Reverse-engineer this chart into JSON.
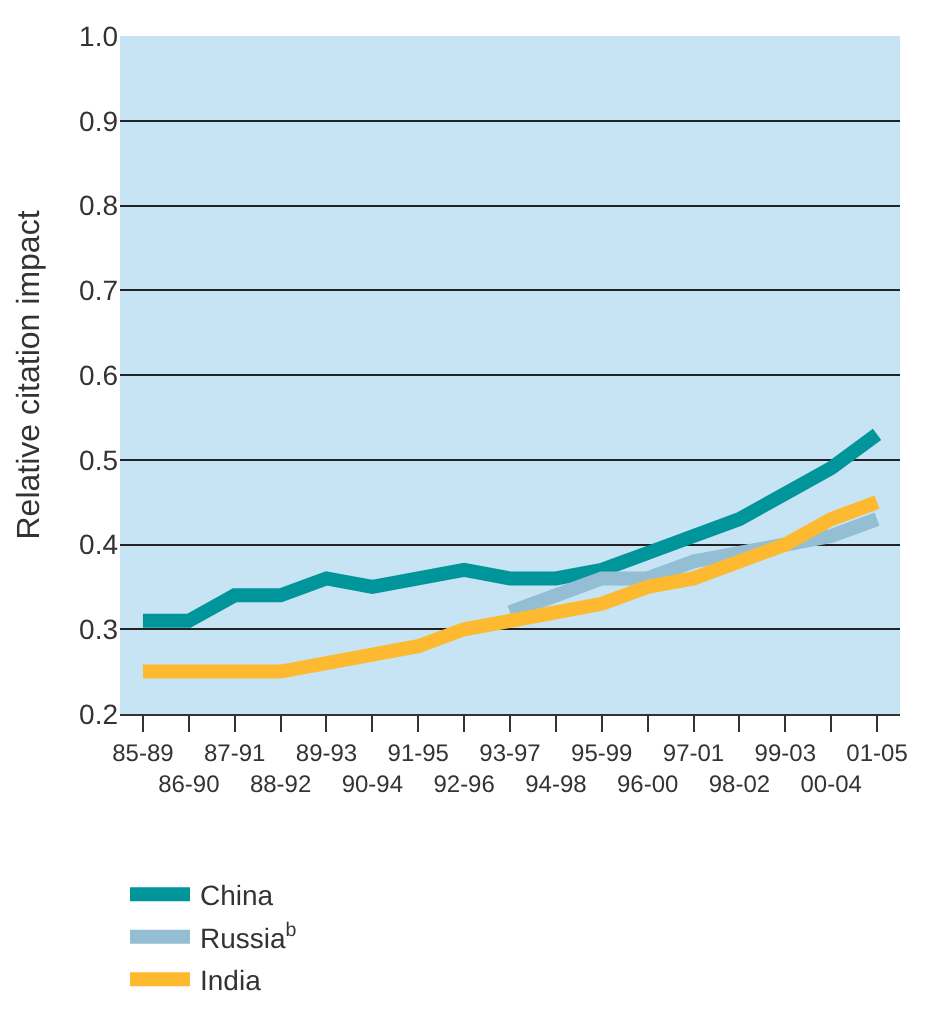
{
  "chart_data": {
    "type": "line",
    "ylabel": "Relative citation impact",
    "categories": [
      "85-89",
      "86-90",
      "87-91",
      "88-92",
      "89-93",
      "90-94",
      "91-95",
      "92-96",
      "93-97",
      "94-98",
      "95-99",
      "96-00",
      "97-01",
      "98-02",
      "99-03",
      "00-04",
      "01-05"
    ],
    "series": [
      {
        "name": "China",
        "color": "#00959a",
        "values": [
          0.31,
          0.31,
          0.34,
          0.34,
          0.36,
          0.35,
          0.36,
          0.37,
          0.36,
          0.36,
          0.37,
          0.39,
          0.41,
          0.43,
          0.46,
          0.49,
          0.53
        ]
      },
      {
        "name": "Russia$^{b}$",
        "color": "#93bed3",
        "values": [
          null,
          null,
          null,
          null,
          null,
          null,
          null,
          null,
          0.32,
          0.34,
          0.36,
          0.36,
          0.38,
          0.39,
          0.4,
          0.41,
          0.43
        ]
      },
      {
        "name": "India",
        "color": "#fdb930",
        "values": [
          0.25,
          0.25,
          0.25,
          0.25,
          0.26,
          0.27,
          0.28,
          0.3,
          0.31,
          0.32,
          0.33,
          0.35,
          0.36,
          0.38,
          0.4,
          0.43,
          0.45
        ]
      }
    ],
    "ylim": [
      0.2,
      1.0
    ],
    "yticks": [
      0.2,
      0.3,
      0.4,
      0.5,
      0.6,
      0.7,
      0.8,
      0.9,
      {
        "value": 1.0,
        "label": "1.0"
      }
    ],
    "grid": "y",
    "legend": "bottom",
    "marker": "none",
    "line_style": "solid"
  }
}
